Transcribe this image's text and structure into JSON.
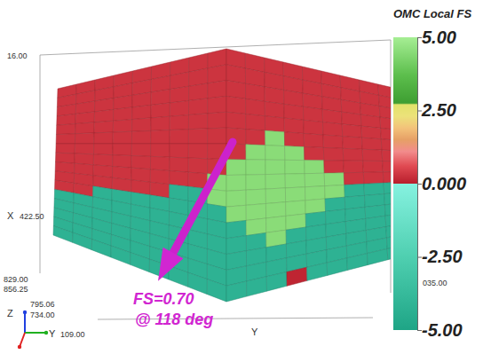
{
  "chart_data": {
    "type": "surface3d",
    "axis_titles": {
      "x": "X",
      "y": "Y"
    },
    "triad": [
      "Z",
      "Y"
    ],
    "box_labels": [
      "16.00",
      "422.50",
      "829.00",
      "856.25",
      "795.06",
      "734.00",
      "109.00",
      "035.00"
    ],
    "annotations": [
      "FS=0.70",
      "@ 118 deg"
    ],
    "colorbar": {
      "title": "OMC Local FS",
      "range": [
        -5,
        5
      ],
      "ticks": [
        {
          "value": 5,
          "label": "5.00"
        },
        {
          "value": 2.5,
          "label": "2.50"
        },
        {
          "value": 0,
          "label": "0.000"
        },
        {
          "value": -2.5,
          "label": "-2.50"
        },
        {
          "value": -5,
          "label": "-5.00"
        }
      ]
    },
    "cells": [
      [
        0.3,
        0.3,
        0.3,
        0.3,
        0.3,
        0.3,
        0.3,
        0.3,
        0.3,
        0.3,
        0.3,
        0.3,
        0.3,
        0.3,
        0.3,
        0.3,
        0.3,
        0.3,
        0.3,
        0.3
      ],
      [
        0.3,
        0.3,
        0.3,
        0.3,
        0.3,
        0.3,
        0.3,
        0.3,
        0.3,
        0.3,
        0.3,
        0.3,
        0.3,
        0.3,
        0.3,
        0.3,
        0.3,
        0.3,
        0.3,
        0.3
      ],
      [
        0.3,
        0.3,
        0.3,
        0.3,
        0.3,
        0.3,
        0.3,
        0.3,
        0.3,
        0.3,
        0.3,
        0.3,
        0.3,
        0.3,
        0.3,
        0.3,
        0.3,
        0.3,
        0.3,
        0.3
      ],
      [
        0.3,
        0.3,
        0.3,
        0.3,
        0.3,
        0.3,
        0.3,
        0.3,
        0.3,
        0.3,
        0.3,
        0.3,
        0.3,
        0.3,
        0.3,
        0.3,
        0.3,
        0.3,
        0.3,
        0.3
      ],
      [
        0.3,
        0.3,
        0.3,
        0.3,
        0.3,
        0.3,
        0.3,
        0.3,
        0.3,
        0.3,
        0.3,
        0.3,
        0.3,
        0.3,
        0.3,
        0.3,
        0.3,
        0.3,
        0.3,
        0.3
      ],
      [
        0.3,
        0.3,
        0.3,
        0.3,
        0.3,
        0.3,
        0.3,
        0.3,
        0.3,
        0.3,
        0.3,
        4.5,
        0.3,
        0.3,
        0.3,
        0.3,
        0.3,
        0.3,
        0.3,
        0.3
      ],
      [
        0.3,
        0.3,
        0.3,
        0.3,
        0.3,
        0.3,
        0.3,
        0.3,
        0.3,
        0.3,
        4.5,
        4.5,
        4.5,
        0.3,
        0.3,
        0.3,
        0.3,
        0.3,
        0.3,
        0.3
      ],
      [
        0.3,
        0.3,
        0.3,
        0.3,
        0.3,
        0.3,
        0.3,
        0.3,
        0.3,
        4.5,
        4.5,
        4.5,
        4.5,
        4.5,
        0.3,
        0.3,
        0.3,
        0.3,
        0.3,
        0.3
      ],
      [
        0.3,
        0.3,
        0.3,
        0.3,
        0.3,
        0.3,
        0.3,
        0.3,
        4.5,
        4.5,
        4.5,
        4.5,
        4.5,
        4.5,
        4.5,
        0.3,
        0.3,
        0.3,
        0.3,
        0.3
      ],
      [
        0.3,
        0.3,
        0.3,
        0.3,
        0.3,
        0.3,
        -4.2,
        -4.2,
        4.5,
        4.5,
        4.5,
        4.5,
        4.5,
        4.5,
        4.5,
        -4.2,
        -4.2,
        -4.2,
        0.3,
        0.3
      ],
      [
        0.3,
        0.3,
        -4.2,
        -4.2,
        -4.2,
        -4.2,
        -4.2,
        -4.2,
        -4.2,
        4.5,
        4.5,
        4.5,
        4.5,
        4.5,
        -4.2,
        -4.2,
        -4.2,
        -4.2,
        -4.2,
        -4.2
      ],
      [
        -4.2,
        -4.2,
        -4.2,
        -4.2,
        -4.2,
        -4.2,
        -4.2,
        -4.2,
        -4.2,
        -4.2,
        4.5,
        4.5,
        4.5,
        -4.2,
        -4.2,
        -4.2,
        -4.2,
        -4.2,
        -4.2,
        -4.2
      ],
      [
        -4.2,
        -4.2,
        -4.2,
        -4.2,
        -4.2,
        -4.2,
        -4.2,
        -4.2,
        -4.2,
        -4.2,
        -4.2,
        4.5,
        -4.2,
        -4.2,
        -4.2,
        -4.2,
        -4.2,
        -4.2,
        -4.2,
        -4.2
      ],
      [
        -4.2,
        -4.2,
        -4.2,
        -4.2,
        -4.2,
        -4.2,
        -4.2,
        -4.2,
        -4.2,
        -4.2,
        -4.2,
        -4.2,
        -4.2,
        -4.2,
        -4.2,
        -4.2,
        -4.2,
        -4.2,
        -4.2,
        -4.2
      ],
      [
        -4.2,
        -4.2,
        -4.2,
        -4.2,
        -4.2,
        -4.2,
        -4.2,
        -4.2,
        -4.2,
        -4.2,
        -4.2,
        -4.2,
        -4.2,
        -4.2,
        -4.2,
        -4.2,
        -4.2,
        -4.2,
        -4.2,
        -4.2
      ],
      [
        -4.2,
        -4.2,
        -4.2,
        -4.2,
        -4.2,
        -4.2,
        -4.2,
        -4.2,
        -4.2,
        -4.2,
        -4.2,
        -4.2,
        0.1,
        -4.2,
        -4.2,
        -4.2,
        -4.2,
        -4.2,
        -4.2,
        -4.2
      ]
    ]
  }
}
